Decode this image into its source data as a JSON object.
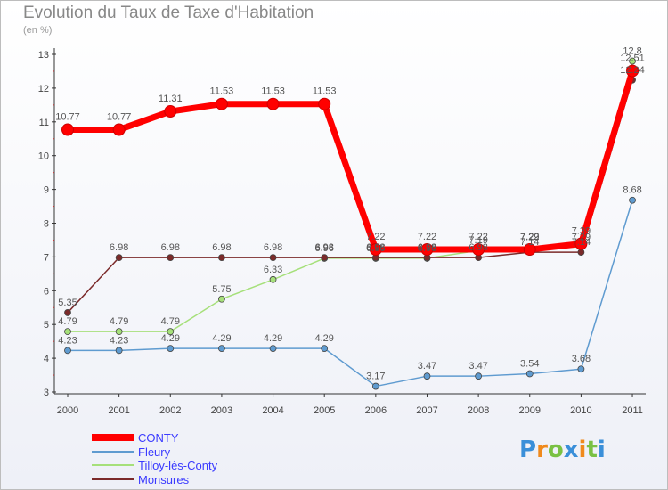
{
  "chart_data": {
    "type": "line",
    "title": "Evolution du Taux de Taxe d'Habitation",
    "subtitle": "(en %)",
    "categories": [
      "2000",
      "2001",
      "2002",
      "2003",
      "2004",
      "2005",
      "2006",
      "2007",
      "2008",
      "2009",
      "2010",
      "2011"
    ],
    "ylim": [
      3,
      13
    ],
    "yticks": [
      3,
      4,
      5,
      6,
      7,
      8,
      9,
      10,
      11,
      12,
      13
    ],
    "grid": false,
    "legend_position": "bottom-left",
    "series": [
      {
        "name": "CONTY",
        "color": "#ff0000",
        "values": [
          10.77,
          10.77,
          11.31,
          11.53,
          11.53,
          11.53,
          7.22,
          7.22,
          7.22,
          7.22,
          7.39,
          12.51
        ]
      },
      {
        "name": "Fleury",
        "color": "#5f9bd0",
        "values": [
          4.23,
          4.23,
          4.29,
          4.29,
          4.29,
          4.29,
          3.17,
          3.47,
          3.47,
          3.54,
          3.68,
          8.68
        ]
      },
      {
        "name": "Tilloy-lès-Conty",
        "color": "#a6e07a",
        "values": [
          4.79,
          4.79,
          4.79,
          5.75,
          6.33,
          6.96,
          6.96,
          6.96,
          7.19,
          7.29,
          7.29,
          12.8
        ]
      },
      {
        "name": "Monsures",
        "color": "#7b2a2a",
        "values": [
          5.35,
          6.98,
          6.98,
          6.98,
          6.98,
          6.98,
          6.98,
          6.98,
          6.98,
          7.14,
          7.14,
          12.24
        ]
      }
    ]
  },
  "logo": {
    "text": "Proxiti",
    "letters": [
      {
        "ch": "P",
        "color": "#3a8fd9"
      },
      {
        "ch": "r",
        "color": "#f08a1c"
      },
      {
        "ch": "o",
        "color": "#7ac143"
      },
      {
        "ch": "x",
        "color": "#3a8fd9"
      },
      {
        "ch": "i",
        "color": "#f08a1c"
      },
      {
        "ch": "t",
        "color": "#7ac143"
      },
      {
        "ch": "i",
        "color": "#3a8fd9"
      }
    ]
  }
}
